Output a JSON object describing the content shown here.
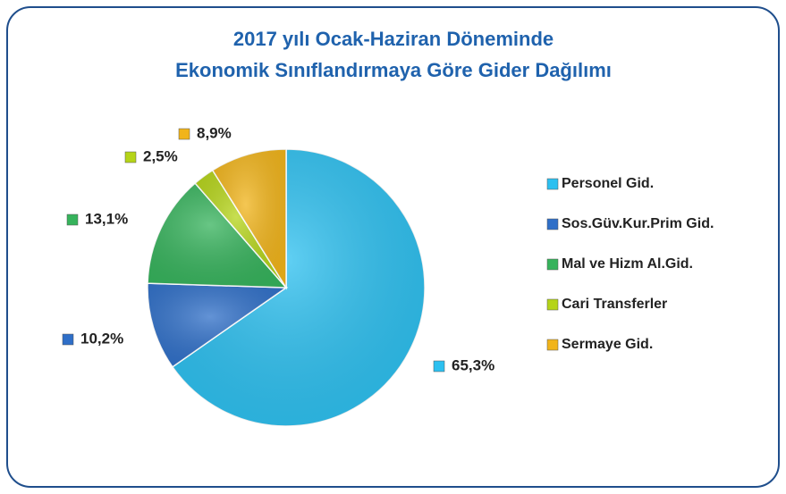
{
  "chart_data": {
    "type": "pie",
    "title": [
      "2017 yılı Ocak-Haziran Döneminde",
      "Ekonomik Sınıflandırmaya Göre Gider Dağılımı"
    ],
    "categories": [
      "Personel Gid.",
      "Sos.Güv.Kur.Prim Gid.",
      "Mal ve Hizm Al.Gid.",
      "Cari Transferler",
      "Sermaye Gid."
    ],
    "values": [
      65.3,
      10.2,
      13.1,
      2.5,
      8.9
    ],
    "value_labels": [
      "65,3%",
      "10,2%",
      "13,1%",
      "2,5%",
      "8,9%"
    ],
    "colors": [
      "#2cc0f0",
      "#2f6fc8",
      "#36b35c",
      "#b5d418",
      "#f1b41a"
    ],
    "legend": "right"
  }
}
